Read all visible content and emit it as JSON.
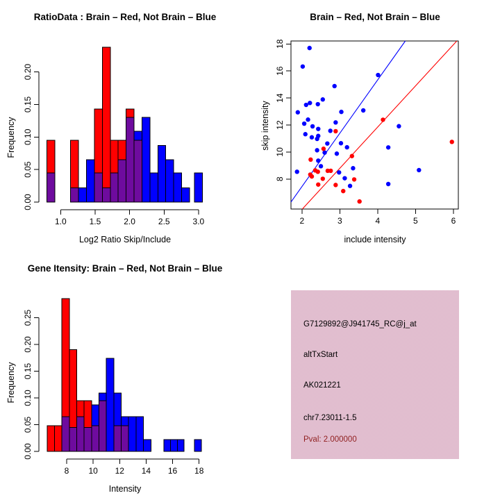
{
  "colors": {
    "red": "#FF0000",
    "blue": "#0000FF",
    "purple": "#6E0B9E",
    "axis": "#000000",
    "pval_red": "#8F1F1F",
    "info_bg_pink": "#F3AFC5",
    "info_bg_gray": "#CFCCD9"
  },
  "chart_data": [
    {
      "id": "ratio_histogram",
      "type": "bar",
      "title": "RatioData : Brain – Red, Not Brain – Blue",
      "xlabel": "Log2 Ratio Skip/Include",
      "ylabel": "Frequency",
      "legend_note": "red bars = Brain, blue bars = Not Brain, purple = overlap",
      "xlim": [
        0.7,
        3.15
      ],
      "ylim": [
        0,
        0.24
      ],
      "grid": false,
      "x_ticks": [
        {
          "v": 1.0,
          "label": "1.0"
        },
        {
          "v": 1.5,
          "label": "1.5"
        },
        {
          "v": 2.0,
          "label": "2.0"
        },
        {
          "v": 2.5,
          "label": "2.5"
        },
        {
          "v": 3.0,
          "label": "3.0"
        }
      ],
      "y_ticks": [
        {
          "v": 0.0,
          "label": "0.00"
        },
        {
          "v": 0.05,
          "label": "0.05"
        },
        {
          "v": 0.1,
          "label": "0.10"
        },
        {
          "v": 0.15,
          "label": "0.15"
        },
        {
          "v": 0.2,
          "label": "0.20"
        }
      ],
      "bars": [
        {
          "x0": 0.8,
          "x1": 0.915,
          "red": 0.095,
          "blue": 0.045
        },
        {
          "x0": 1.145,
          "x1": 1.26,
          "red": 0.095,
          "blue": 0.022
        },
        {
          "x0": 1.26,
          "x1": 1.375,
          "red": 0,
          "blue": 0.022
        },
        {
          "x0": 1.375,
          "x1": 1.49,
          "red": 0,
          "blue": 0.065
        },
        {
          "x0": 1.49,
          "x1": 1.605,
          "red": 0.143,
          "blue": 0.045
        },
        {
          "x0": 1.605,
          "x1": 1.72,
          "red": 0.238,
          "blue": 0.022
        },
        {
          "x0": 1.72,
          "x1": 1.835,
          "red": 0.095,
          "blue": 0.045
        },
        {
          "x0": 1.835,
          "x1": 1.95,
          "red": 0.095,
          "blue": 0.065
        },
        {
          "x0": 1.95,
          "x1": 2.065,
          "red": 0.143,
          "blue": 0.13
        },
        {
          "x0": 2.065,
          "x1": 2.18,
          "red": 0.095,
          "blue": 0.109
        },
        {
          "x0": 2.18,
          "x1": 2.295,
          "red": 0,
          "blue": 0.13
        },
        {
          "x0": 2.295,
          "x1": 2.41,
          "red": 0,
          "blue": 0.045
        },
        {
          "x0": 2.41,
          "x1": 2.525,
          "red": 0,
          "blue": 0.087
        },
        {
          "x0": 2.525,
          "x1": 2.64,
          "red": 0,
          "blue": 0.065
        },
        {
          "x0": 2.64,
          "x1": 2.755,
          "red": 0,
          "blue": 0.045
        },
        {
          "x0": 2.755,
          "x1": 2.87,
          "red": 0,
          "blue": 0.022
        },
        {
          "x0": 2.94,
          "x1": 3.055,
          "red": 0,
          "blue": 0.045
        }
      ]
    },
    {
      "id": "intensity_scatter",
      "type": "scatter",
      "title": "Brain – Red, Not Brain – Blue",
      "xlabel": "include intensity",
      "ylabel": "skip intensity",
      "xlim": [
        1.71,
        6.13
      ],
      "ylim": [
        5.78,
        18.22
      ],
      "grid": false,
      "x_ticks": [
        {
          "v": 2,
          "label": "2"
        },
        {
          "v": 3,
          "label": "3"
        },
        {
          "v": 4,
          "label": "4"
        },
        {
          "v": 5,
          "label": "5"
        },
        {
          "v": 6,
          "label": "6"
        }
      ],
      "y_ticks": [
        {
          "v": 8,
          "label": "8"
        },
        {
          "v": 10,
          "label": "10"
        },
        {
          "v": 12,
          "label": "12"
        },
        {
          "v": 14,
          "label": "14"
        },
        {
          "v": 16,
          "label": "16"
        },
        {
          "v": 18,
          "label": "18"
        }
      ],
      "series": [
        {
          "name": "Not Brain",
          "color": "blue",
          "points": [
            [
              2.2,
              17.7
            ],
            [
              2.02,
              16.33
            ],
            [
              4.01,
              15.7
            ],
            [
              2.86,
              14.88
            ],
            [
              2.55,
              13.89
            ],
            [
              2.21,
              13.63
            ],
            [
              2.11,
              13.49
            ],
            [
              2.42,
              13.54
            ],
            [
              1.89,
              12.94
            ],
            [
              3.04,
              12.97
            ],
            [
              3.62,
              13.08
            ],
            [
              2.16,
              12.4
            ],
            [
              2.89,
              12.19
            ],
            [
              2.06,
              12.1
            ],
            [
              2.28,
              11.9
            ],
            [
              2.43,
              11.71
            ],
            [
              2.75,
              11.57
            ],
            [
              2.09,
              11.32
            ],
            [
              2.26,
              11.09
            ],
            [
              2.43,
              11.19
            ],
            [
              2.4,
              10.97
            ],
            [
              2.67,
              10.63
            ],
            [
              3.03,
              10.65
            ],
            [
              3.19,
              10.35
            ],
            [
              2.4,
              10.13
            ],
            [
              2.6,
              9.96
            ],
            [
              2.92,
              9.88
            ],
            [
              2.43,
              9.36
            ],
            [
              1.87,
              8.54
            ],
            [
              2.5,
              8.95
            ],
            [
              2.98,
              8.49
            ],
            [
              3.35,
              8.8
            ],
            [
              3.13,
              8.06
            ],
            [
              3.27,
              7.49
            ],
            [
              4.56,
              11.91
            ],
            [
              4.28,
              10.34
            ],
            [
              5.09,
              8.66
            ],
            [
              4.28,
              7.63
            ]
          ]
        },
        {
          "name": "Brain",
          "color": "red",
          "points": [
            [
              2.89,
              11.54
            ],
            [
              4.14,
              12.39
            ],
            [
              5.96,
              10.75
            ],
            [
              2.57,
              10.24
            ],
            [
              2.23,
              9.44
            ],
            [
              3.32,
              9.7
            ],
            [
              2.22,
              8.33
            ],
            [
              2.26,
              8.19
            ],
            [
              2.35,
              8.64
            ],
            [
              2.42,
              8.54
            ],
            [
              2.68,
              8.61
            ],
            [
              2.76,
              8.61
            ],
            [
              2.55,
              8.02
            ],
            [
              2.43,
              7.59
            ],
            [
              2.89,
              7.56
            ],
            [
              3.38,
              7.97
            ],
            [
              3.09,
              7.11
            ],
            [
              3.52,
              6.34
            ]
          ]
        }
      ],
      "lines": [
        {
          "name": "not-brain-fit",
          "color": "blue",
          "from": [
            1.71,
            6.3
          ],
          "to": [
            4.73,
            18.22
          ]
        },
        {
          "name": "brain-fit",
          "color": "red",
          "from": [
            2.01,
            5.78
          ],
          "to": [
            6.09,
            18.22
          ]
        }
      ]
    },
    {
      "id": "gene_intensity_histogram",
      "type": "bar",
      "title": "Gene Itensity: Brain – Red, Not Brain – Blue",
      "xlabel": "Intensity",
      "ylabel": "Frequency",
      "legend_note": "red bars = Brain, blue bars = Not Brain, purple = overlap",
      "xlim": [
        6.3,
        18.4
      ],
      "ylim": [
        0,
        0.29
      ],
      "grid": false,
      "x_ticks": [
        {
          "v": 8,
          "label": "8"
        },
        {
          "v": 10,
          "label": "10"
        },
        {
          "v": 12,
          "label": "12"
        },
        {
          "v": 14,
          "label": "14"
        },
        {
          "v": 16,
          "label": "16"
        },
        {
          "v": 18,
          "label": "18"
        }
      ],
      "y_ticks": [
        {
          "v": 0.0,
          "label": "0.00"
        },
        {
          "v": 0.05,
          "label": "0.05"
        },
        {
          "v": 0.1,
          "label": "0.10"
        },
        {
          "v": 0.15,
          "label": "0.15"
        },
        {
          "v": 0.2,
          "label": "0.20"
        },
        {
          "v": 0.25,
          "label": "0.25"
        }
      ],
      "bars": [
        {
          "x0": 6.52,
          "x1": 7.08,
          "red": 0.048,
          "blue": 0
        },
        {
          "x0": 7.08,
          "x1": 7.64,
          "red": 0.048,
          "blue": 0
        },
        {
          "x0": 7.64,
          "x1": 8.2,
          "red": 0.286,
          "blue": 0.065
        },
        {
          "x0": 8.2,
          "x1": 8.76,
          "red": 0.19,
          "blue": 0.045
        },
        {
          "x0": 8.76,
          "x1": 9.32,
          "red": 0.095,
          "blue": 0.065
        },
        {
          "x0": 9.32,
          "x1": 9.88,
          "red": 0.095,
          "blue": 0.045
        },
        {
          "x0": 9.88,
          "x1": 10.44,
          "red": 0.048,
          "blue": 0.087
        },
        {
          "x0": 10.44,
          "x1": 11.0,
          "red": 0.095,
          "blue": 0.109
        },
        {
          "x0": 11.0,
          "x1": 11.56,
          "red": 0,
          "blue": 0.174
        },
        {
          "x0": 11.56,
          "x1": 12.12,
          "red": 0.048,
          "blue": 0.109
        },
        {
          "x0": 12.12,
          "x1": 12.68,
          "red": 0.048,
          "blue": 0.065
        },
        {
          "x0": 12.68,
          "x1": 13.24,
          "red": 0,
          "blue": 0.065
        },
        {
          "x0": 13.24,
          "x1": 13.8,
          "red": 0,
          "blue": 0.065
        },
        {
          "x0": 13.8,
          "x1": 14.36,
          "red": 0,
          "blue": 0.022
        },
        {
          "x0": 15.34,
          "x1": 15.85,
          "red": 0,
          "blue": 0.022
        },
        {
          "x0": 15.85,
          "x1": 16.36,
          "red": 0,
          "blue": 0.022
        },
        {
          "x0": 16.36,
          "x1": 16.87,
          "red": 0,
          "blue": 0.022
        },
        {
          "x0": 17.65,
          "x1": 18.17,
          "red": 0,
          "blue": 0.022
        }
      ]
    }
  ],
  "info_panel": {
    "lines": [
      {
        "text": "G7129892@J941745_RC@j_at",
        "color": "#000000"
      },
      {
        "text": "altTxStart",
        "color": "#000000"
      },
      {
        "text": "AK021221",
        "color": "#000000"
      },
      {
        "text": "chr7.23011-1.5",
        "color": "#000000"
      },
      {
        "text": "Pval: 2.000000",
        "color": "#8F1F1F"
      }
    ]
  }
}
